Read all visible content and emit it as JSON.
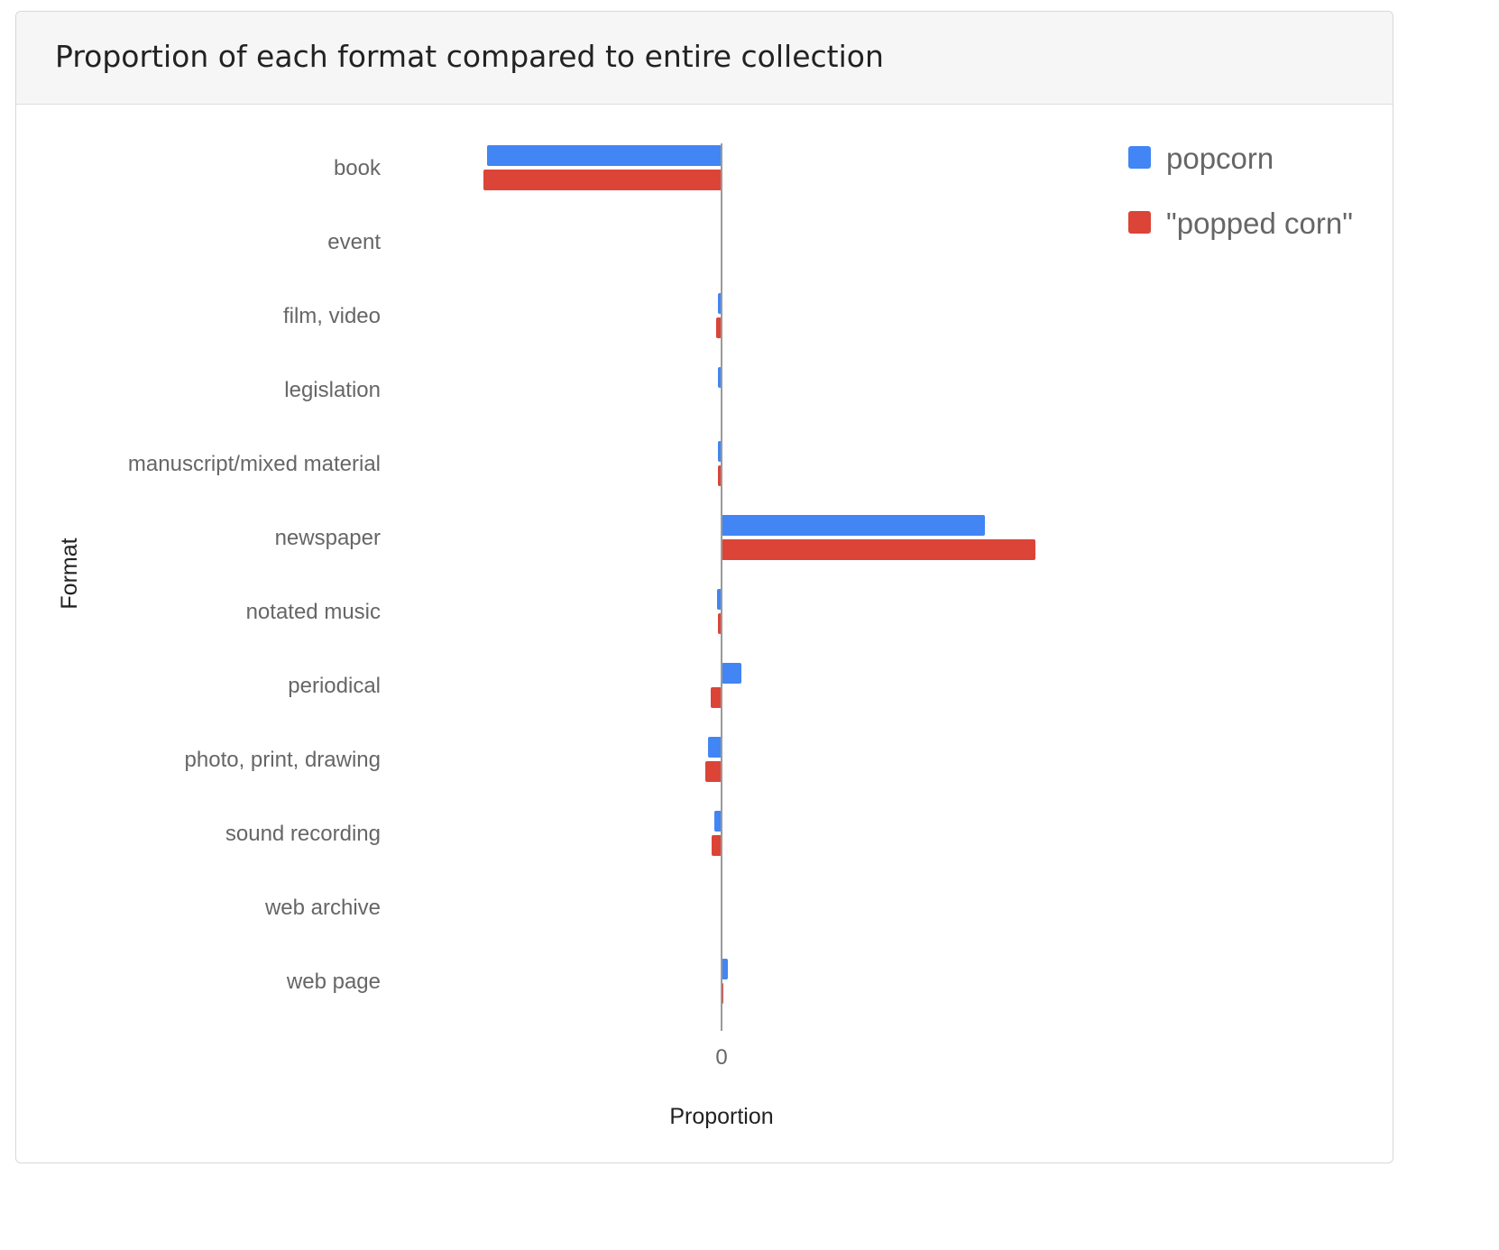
{
  "panel": {
    "title": "Proportion of each format compared to entire collection"
  },
  "colors": {
    "popcorn": "#4285f4",
    "popped_corn": "#db4437",
    "axis": "#999999",
    "label": "#666666",
    "axis_title": "#222222"
  },
  "chart_data": {
    "type": "bar",
    "orientation": "horizontal",
    "title": "",
    "xlabel": "Proportion",
    "ylabel": "Format",
    "x_ticks": [
      "0"
    ],
    "xlim": [
      -0.53,
      0.75
    ],
    "categories": [
      "book",
      "event",
      "film, video",
      "legislation",
      "manuscript/mixed material",
      "newspaper",
      "notated music",
      "periodical",
      "photo, print, drawing",
      "sound recording",
      "web archive",
      "web page"
    ],
    "series": [
      {
        "name": "popcorn",
        "color": "#4285f4",
        "values": [
          -0.26,
          0.0,
          -0.004,
          -0.004,
          -0.004,
          0.292,
          -0.005,
          0.022,
          -0.015,
          -0.008,
          0.0,
          0.007
        ]
      },
      {
        "name": "\"popped corn\"",
        "color": "#db4437",
        "values": [
          -0.264,
          0.0,
          -0.006,
          0.0,
          -0.004,
          0.348,
          -0.004,
          -0.012,
          -0.018,
          -0.011,
          0.0,
          0.001
        ]
      }
    ],
    "legend": "top-right",
    "grid": false
  }
}
